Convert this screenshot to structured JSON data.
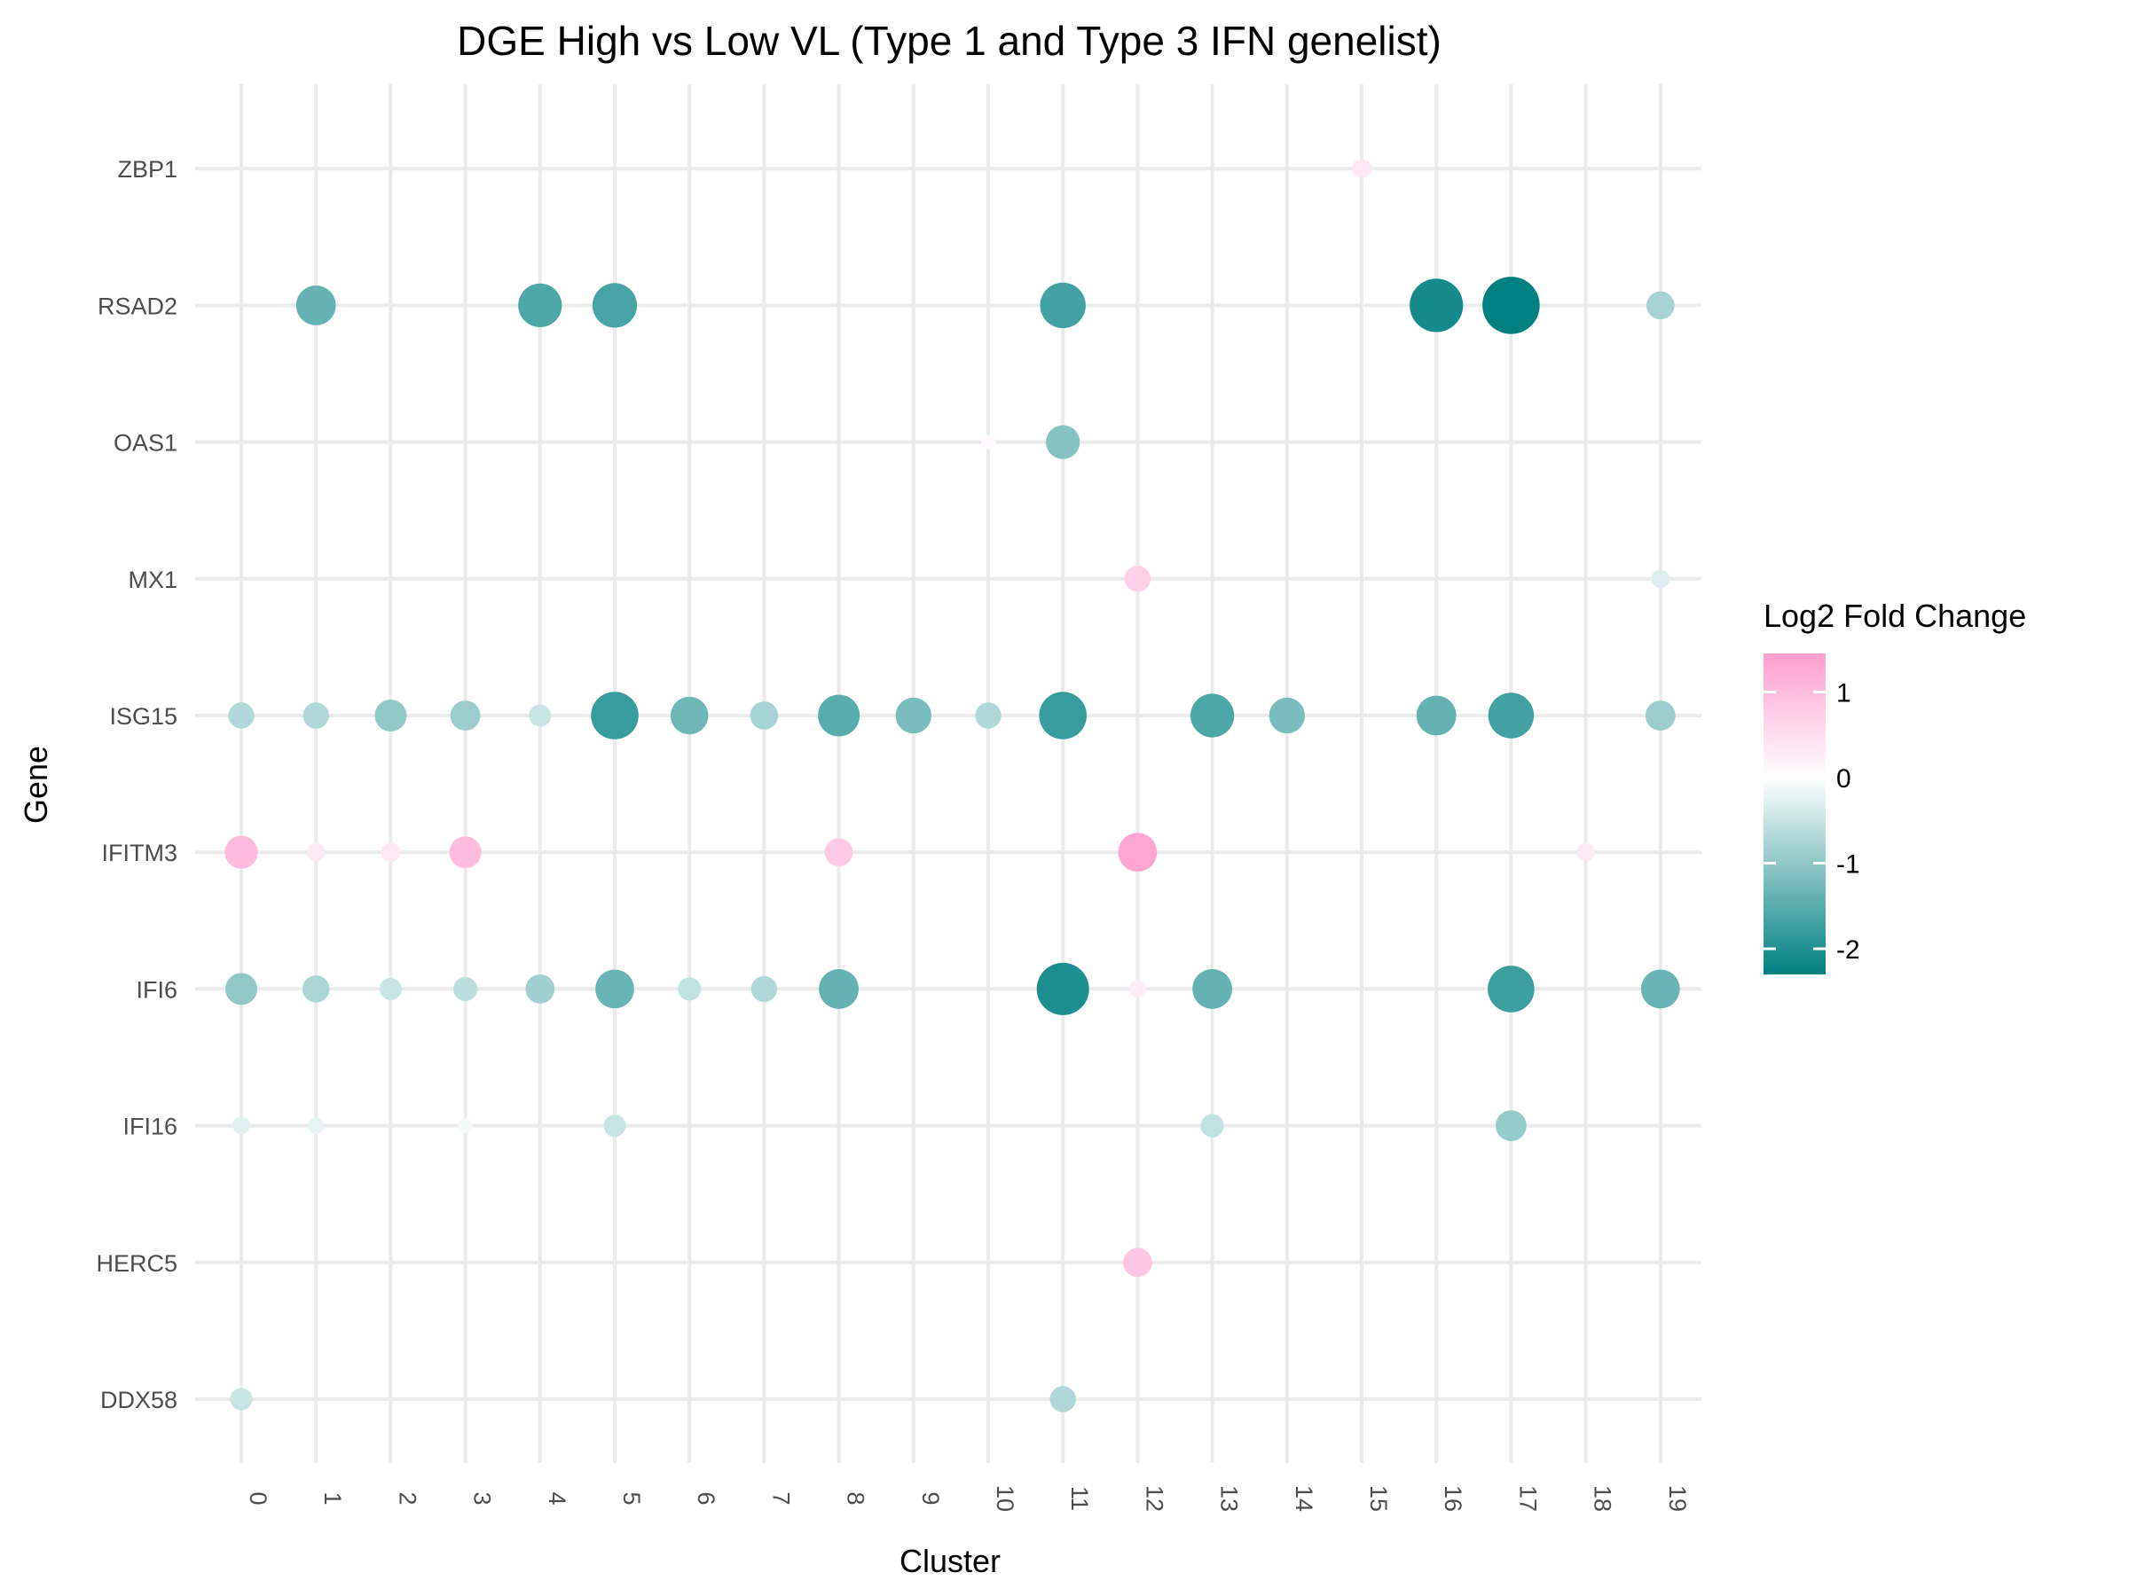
{
  "chart_data": {
    "type": "scatter",
    "title": "DGE High vs Low VL (Type 1 and Type 3 IFN genelist)",
    "xlabel": "Cluster",
    "ylabel": "Gene",
    "x_categories": [
      "0",
      "1",
      "2",
      "3",
      "4",
      "5",
      "6",
      "7",
      "8",
      "9",
      "10",
      "11",
      "12",
      "13",
      "14",
      "15",
      "16",
      "17",
      "18",
      "19"
    ],
    "y_categories": [
      "DDX58",
      "HERC5",
      "IFI16",
      "IFI6",
      "IFITM3",
      "ISG15",
      "MX1",
      "OAS1",
      "RSAD2",
      "ZBP1"
    ],
    "legend": {
      "title": "Log2 Fold Change",
      "position": "right",
      "ticks": [
        1,
        0,
        -1,
        -2
      ],
      "range": [
        -2.3,
        1.45
      ],
      "colors": {
        "low": "#008080",
        "mid": "#ffffff",
        "high": "#ff9ecf"
      }
    },
    "grid": true,
    "points": [
      {
        "gene": "ZBP1",
        "cluster": "15",
        "log2fc": 0.35
      },
      {
        "gene": "RSAD2",
        "cluster": "1",
        "log2fc": -1.4
      },
      {
        "gene": "RSAD2",
        "cluster": "4",
        "log2fc": -1.6
      },
      {
        "gene": "RSAD2",
        "cluster": "5",
        "log2fc": -1.65
      },
      {
        "gene": "RSAD2",
        "cluster": "11",
        "log2fc": -1.7
      },
      {
        "gene": "RSAD2",
        "cluster": "16",
        "log2fc": -2.1
      },
      {
        "gene": "RSAD2",
        "cluster": "17",
        "log2fc": -2.3
      },
      {
        "gene": "RSAD2",
        "cluster": "19",
        "log2fc": -0.8
      },
      {
        "gene": "OAS1",
        "cluster": "10",
        "log2fc": 0.1
      },
      {
        "gene": "OAS1",
        "cluster": "11",
        "log2fc": -1.1
      },
      {
        "gene": "MX1",
        "cluster": "12",
        "log2fc": 0.7
      },
      {
        "gene": "MX1",
        "cluster": "19",
        "log2fc": -0.3
      },
      {
        "gene": "ISG15",
        "cluster": "0",
        "log2fc": -0.7
      },
      {
        "gene": "ISG15",
        "cluster": "1",
        "log2fc": -0.7
      },
      {
        "gene": "ISG15",
        "cluster": "2",
        "log2fc": -1.0
      },
      {
        "gene": "ISG15",
        "cluster": "3",
        "log2fc": -0.9
      },
      {
        "gene": "ISG15",
        "cluster": "4",
        "log2fc": -0.5
      },
      {
        "gene": "ISG15",
        "cluster": "5",
        "log2fc": -1.8
      },
      {
        "gene": "ISG15",
        "cluster": "6",
        "log2fc": -1.3
      },
      {
        "gene": "ISG15",
        "cluster": "7",
        "log2fc": -0.8
      },
      {
        "gene": "ISG15",
        "cluster": "8",
        "log2fc": -1.5
      },
      {
        "gene": "ISG15",
        "cluster": "9",
        "log2fc": -1.2
      },
      {
        "gene": "ISG15",
        "cluster": "10",
        "log2fc": -0.7
      },
      {
        "gene": "ISG15",
        "cluster": "11",
        "log2fc": -1.8
      },
      {
        "gene": "ISG15",
        "cluster": "13",
        "log2fc": -1.6
      },
      {
        "gene": "ISG15",
        "cluster": "14",
        "log2fc": -1.2
      },
      {
        "gene": "ISG15",
        "cluster": "16",
        "log2fc": -1.4
      },
      {
        "gene": "ISG15",
        "cluster": "17",
        "log2fc": -1.7
      },
      {
        "gene": "ISG15",
        "cluster": "19",
        "log2fc": -0.9
      },
      {
        "gene": "IFITM3",
        "cluster": "0",
        "log2fc": 1.05
      },
      {
        "gene": "IFITM3",
        "cluster": "1",
        "log2fc": 0.3
      },
      {
        "gene": "IFITM3",
        "cluster": "2",
        "log2fc": 0.35
      },
      {
        "gene": "IFITM3",
        "cluster": "3",
        "log2fc": 1.0
      },
      {
        "gene": "IFITM3",
        "cluster": "8",
        "log2fc": 0.8
      },
      {
        "gene": "IFITM3",
        "cluster": "12",
        "log2fc": 1.35
      },
      {
        "gene": "IFITM3",
        "cluster": "18",
        "log2fc": 0.3
      },
      {
        "gene": "IFI6",
        "cluster": "0",
        "log2fc": -1.0
      },
      {
        "gene": "IFI6",
        "cluster": "1",
        "log2fc": -0.75
      },
      {
        "gene": "IFI6",
        "cluster": "2",
        "log2fc": -0.5
      },
      {
        "gene": "IFI6",
        "cluster": "3",
        "log2fc": -0.6
      },
      {
        "gene": "IFI6",
        "cluster": "4",
        "log2fc": -0.85
      },
      {
        "gene": "IFI6",
        "cluster": "5",
        "log2fc": -1.35
      },
      {
        "gene": "IFI6",
        "cluster": "6",
        "log2fc": -0.55
      },
      {
        "gene": "IFI6",
        "cluster": "7",
        "log2fc": -0.7
      },
      {
        "gene": "IFI6",
        "cluster": "8",
        "log2fc": -1.4
      },
      {
        "gene": "IFI6",
        "cluster": "11",
        "log2fc": -2.05
      },
      {
        "gene": "IFI6",
        "cluster": "12",
        "log2fc": 0.25
      },
      {
        "gene": "IFI6",
        "cluster": "13",
        "log2fc": -1.4
      },
      {
        "gene": "IFI6",
        "cluster": "17",
        "log2fc": -1.75
      },
      {
        "gene": "IFI6",
        "cluster": "19",
        "log2fc": -1.35
      },
      {
        "gene": "IFI16",
        "cluster": "0",
        "log2fc": -0.25
      },
      {
        "gene": "IFI16",
        "cluster": "1",
        "log2fc": -0.2
      },
      {
        "gene": "IFI16",
        "cluster": "3",
        "log2fc": -0.1
      },
      {
        "gene": "IFI16",
        "cluster": "5",
        "log2fc": -0.5
      },
      {
        "gene": "IFI16",
        "cluster": "13",
        "log2fc": -0.55
      },
      {
        "gene": "IFI16",
        "cluster": "17",
        "log2fc": -0.95
      },
      {
        "gene": "HERC5",
        "cluster": "12",
        "log2fc": 0.85
      },
      {
        "gene": "DDX58",
        "cluster": "0",
        "log2fc": -0.5
      },
      {
        "gene": "DDX58",
        "cluster": "11",
        "log2fc": -0.7
      }
    ]
  }
}
